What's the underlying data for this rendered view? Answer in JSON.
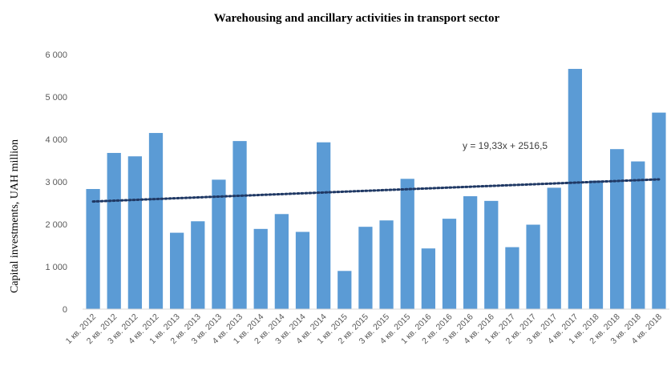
{
  "chart_data": {
    "type": "bar",
    "title": "Warehousing and ancillary activities in transport sector",
    "xlabel": "",
    "ylabel": "Capital investments, UAH million",
    "ylim": [
      0,
      6000
    ],
    "yticks": [
      0,
      1000,
      2000,
      3000,
      4000,
      5000,
      6000
    ],
    "ytick_labels": [
      "0",
      "1 000",
      "2 000",
      "3 000",
      "4 000",
      "5 000",
      "6 000"
    ],
    "grid": false,
    "legend": "none",
    "bar_color": "#5b9bd5",
    "trendline_color": "#1f3864",
    "categories": [
      "1 кв. 2012",
      "2 кв. 2012",
      "3 кв. 2012",
      "4 кв. 2012",
      "1 кв. 2013",
      "2 кв. 2013",
      "3 кв. 2013",
      "4 кв. 2013",
      "1 кв. 2014",
      "2 кв. 2014",
      "3 кв. 2014",
      "4 кв. 2014",
      "1 кв. 2015",
      "2 кв. 2015",
      "3 кв. 2015",
      "4 кв. 2015",
      "1 кв. 2016",
      "2 кв. 2016",
      "3 кв. 2016",
      "4 кв. 2016",
      "1 кв. 2017",
      "2 кв. 2017",
      "3 кв. 2017",
      "4 кв. 2017",
      "1 кв. 2018",
      "2 кв. 2018",
      "3 кв. 2018",
      "4 кв. 2018"
    ],
    "values": [
      2830,
      3680,
      3600,
      4150,
      1800,
      2070,
      3050,
      3960,
      1890,
      2240,
      1820,
      3930,
      900,
      1940,
      2090,
      3070,
      1430,
      2130,
      2660,
      2550,
      1460,
      1990,
      2860,
      5660,
      3030,
      3770,
      3480,
      4630
    ],
    "trendline": {
      "equation": "y = 19,33x + 2516,5",
      "slope": 19.33,
      "intercept": 2516.5
    }
  }
}
